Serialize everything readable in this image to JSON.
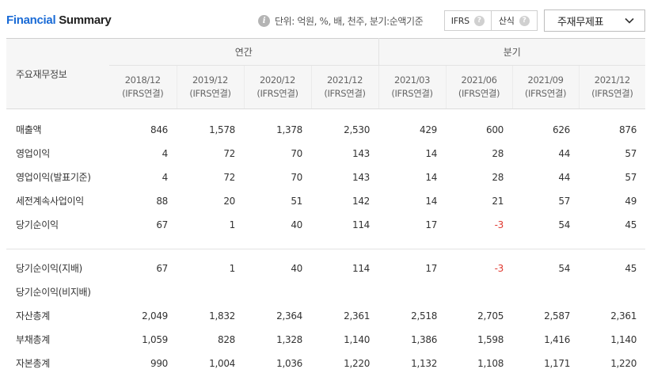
{
  "header": {
    "title_part1": "Financial",
    "title_part2": "Summary",
    "unit_text": "단위: 억원, %, 배, 천주, 분기:순액기준",
    "ifrs_label": "IFRS",
    "formula_label": "산식",
    "help_glyph": "?",
    "select_value": "주재무제표"
  },
  "table": {
    "row_head": "주요재무정보",
    "annual_label": "연간",
    "quarter_label": "분기",
    "columns": [
      {
        "period": "2018/12",
        "basis": "(IFRS연결)"
      },
      {
        "period": "2019/12",
        "basis": "(IFRS연결)"
      },
      {
        "period": "2020/12",
        "basis": "(IFRS연결)"
      },
      {
        "period": "2021/12",
        "basis": "(IFRS연결)"
      },
      {
        "period": "2021/03",
        "basis": "(IFRS연결)"
      },
      {
        "period": "2021/06",
        "basis": "(IFRS연결)"
      },
      {
        "period": "2021/09",
        "basis": "(IFRS연결)"
      },
      {
        "period": "2021/12",
        "basis": "(IFRS연결)"
      }
    ],
    "rows": [
      {
        "label": "매출액",
        "values": [
          "846",
          "1,578",
          "1,378",
          "2,530",
          "429",
          "600",
          "626",
          "876"
        ]
      },
      {
        "label": "영업이익",
        "values": [
          "4",
          "72",
          "70",
          "143",
          "14",
          "28",
          "44",
          "57"
        ]
      },
      {
        "label": "영업이익(발표기준)",
        "values": [
          "4",
          "72",
          "70",
          "143",
          "14",
          "28",
          "44",
          "57"
        ]
      },
      {
        "label": "세전계속사업이익",
        "values": [
          "88",
          "20",
          "51",
          "142",
          "14",
          "21",
          "57",
          "49"
        ]
      },
      {
        "label": "당기순이익",
        "values": [
          "67",
          "1",
          "40",
          "114",
          "17",
          "-3",
          "54",
          "45"
        ]
      },
      {
        "label": "당기순이익(지배)",
        "values": [
          "67",
          "1",
          "40",
          "114",
          "17",
          "-3",
          "54",
          "45"
        ]
      },
      {
        "label": "당기순이익(비지배)",
        "values": [
          "",
          "",
          "",
          "",
          "",
          "",
          "",
          ""
        ]
      },
      {
        "label": "자산총계",
        "values": [
          "2,049",
          "1,832",
          "2,364",
          "2,361",
          "2,518",
          "2,705",
          "2,587",
          "2,361"
        ]
      },
      {
        "label": "부채총계",
        "values": [
          "1,059",
          "828",
          "1,328",
          "1,140",
          "1,386",
          "1,598",
          "1,416",
          "1,140"
        ]
      },
      {
        "label": "자본총계",
        "values": [
          "990",
          "1,004",
          "1,036",
          "1,220",
          "1,132",
          "1,108",
          "1,171",
          "1,220"
        ]
      }
    ]
  }
}
